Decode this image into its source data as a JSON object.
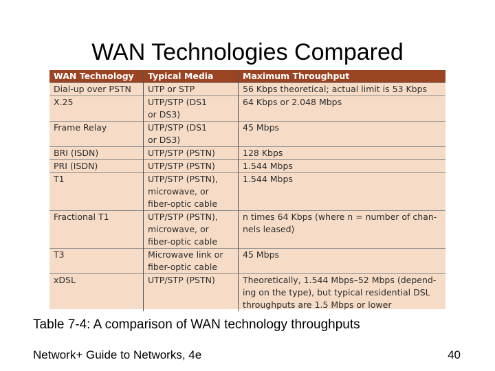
{
  "slide": {
    "title": "WAN Technologies Compared",
    "caption": "Table 7-4: A comparison of WAN technology throughputs",
    "footer": "Network+ Guide to Networks, 4e",
    "page_number": "40"
  },
  "table": {
    "headers": [
      "WAN Technology",
      "Typical Media",
      "Maximum Throughput"
    ],
    "rows": [
      {
        "tech": "Dial-up over PSTN",
        "media": "UTP or STP",
        "throughput": "56 Kbps theoretical; actual limit is 53 Kbps"
      },
      {
        "tech": "X.25",
        "media": "UTP/STP (DS1\nor DS3)",
        "throughput": "64 Kbps or 2.048 Mbps"
      },
      {
        "tech": "Frame Relay",
        "media": "UTP/STP (DS1\nor DS3)",
        "throughput": "45 Mbps"
      },
      {
        "tech": "BRI (ISDN)",
        "media": "UTP/STP (PSTN)",
        "throughput": "128 Kbps"
      },
      {
        "tech": "PRI (ISDN)",
        "media": "UTP/STP (PSTN)",
        "throughput": "1.544 Mbps"
      },
      {
        "tech": "T1",
        "media": "UTP/STP (PSTN),\nmicrowave, or\nfiber-optic cable",
        "throughput": "1.544 Mbps"
      },
      {
        "tech": "Fractional T1",
        "media": "UTP/STP (PSTN),\nmicrowave, or\nfiber-optic cable",
        "throughput": "n times 64 Kbps (where n = number of chan-\nnels leased)"
      },
      {
        "tech": "T3",
        "media": "Microwave link or\nfiber-optic cable",
        "throughput": "45 Mbps"
      },
      {
        "tech": "xDSL",
        "media": "UTP/STP (PSTN)",
        "throughput": "Theoretically, 1.544 Mbps–52 Mbps (depend-\ning on the type), but typical residential DSL\nthroughputs are 1.5 Mbps or lower"
      }
    ]
  },
  "colors": {
    "header_bg": "#9b4423",
    "table_bg": "#f6dcc7"
  }
}
